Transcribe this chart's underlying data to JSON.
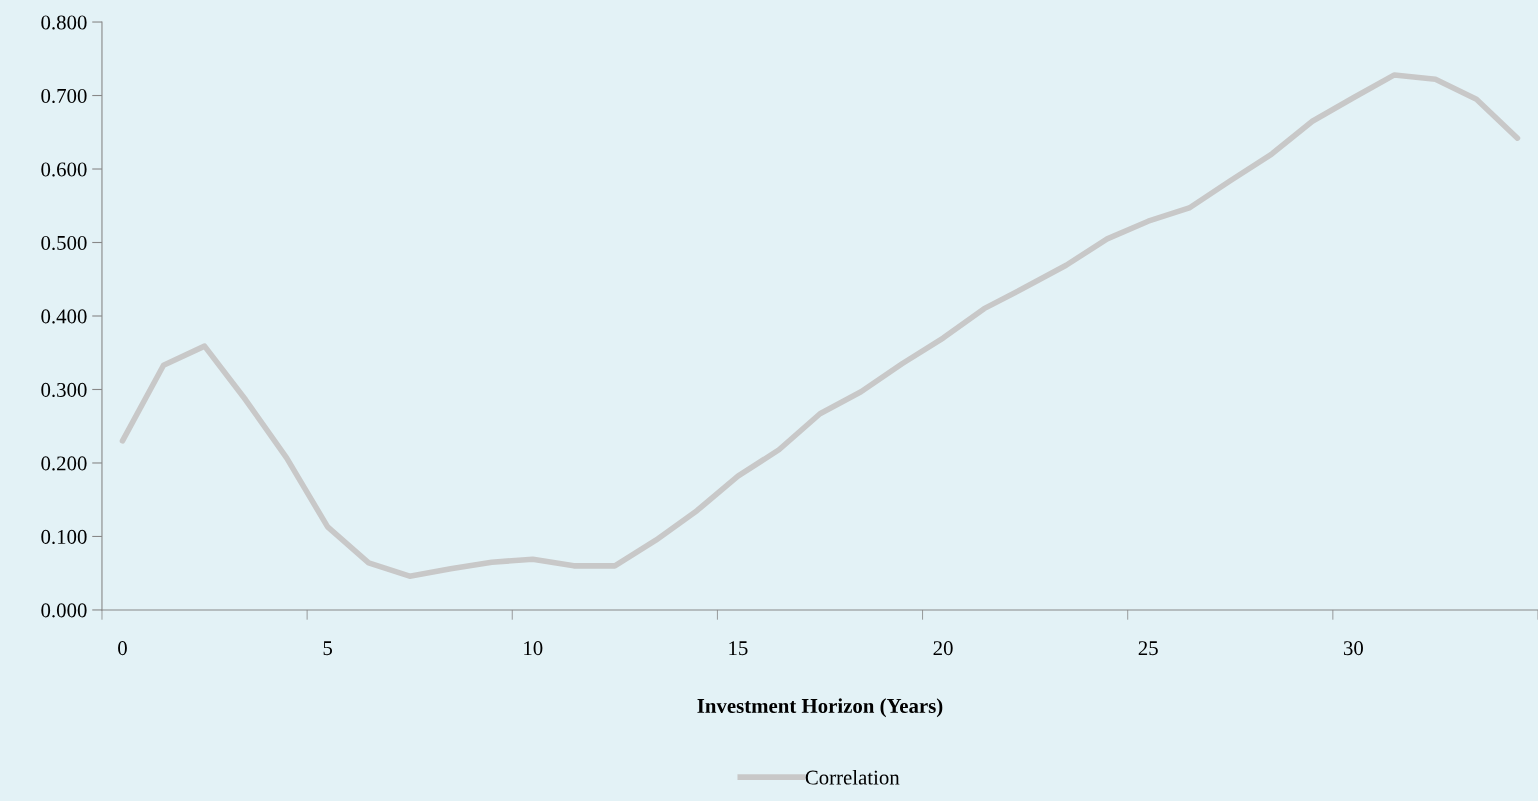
{
  "chart_data": {
    "type": "line",
    "xlabel": "Investment Horizon (Years)",
    "categories": [
      "0",
      null,
      null,
      null,
      null,
      "5",
      null,
      null,
      null,
      null,
      "10",
      null,
      null,
      null,
      null,
      "15",
      null,
      null,
      null,
      null,
      "20",
      null,
      null,
      null,
      null,
      "25",
      null,
      null,
      null,
      null,
      "30",
      null,
      null,
      null,
      null
    ],
    "series": [
      {
        "name": "Correlation",
        "color": "#c8c8c8",
        "values": [
          0.23,
          0.333,
          0.359,
          0.286,
          0.207,
          0.113,
          0.064,
          0.046,
          0.056,
          0.065,
          0.069,
          0.06,
          0.06,
          0.095,
          0.135,
          0.182,
          0.218,
          0.267,
          0.297,
          0.335,
          0.37,
          0.41,
          0.439,
          0.469,
          0.505,
          0.529,
          0.547,
          0.584,
          0.62,
          0.665,
          0.697,
          0.728,
          0.722,
          0.695,
          0.642
        ]
      }
    ],
    "ylim": [
      0,
      0.8
    ],
    "yticks": [
      {
        "value": 0,
        "label": "0.000"
      },
      {
        "value": 0.1,
        "label": "0.100"
      },
      {
        "value": 0.2,
        "label": "0.200"
      },
      {
        "value": 0.3,
        "label": "0.300"
      },
      {
        "value": 0.4,
        "label": "0.400"
      },
      {
        "value": 0.5,
        "label": "0.500"
      },
      {
        "value": 0.6,
        "label": "0.600"
      },
      {
        "value": 0.7,
        "label": "0.700"
      },
      {
        "value": 0.8,
        "label": "0.800"
      }
    ],
    "grid": false,
    "legend": "bottom",
    "marker": "none",
    "line_style": "solid"
  }
}
